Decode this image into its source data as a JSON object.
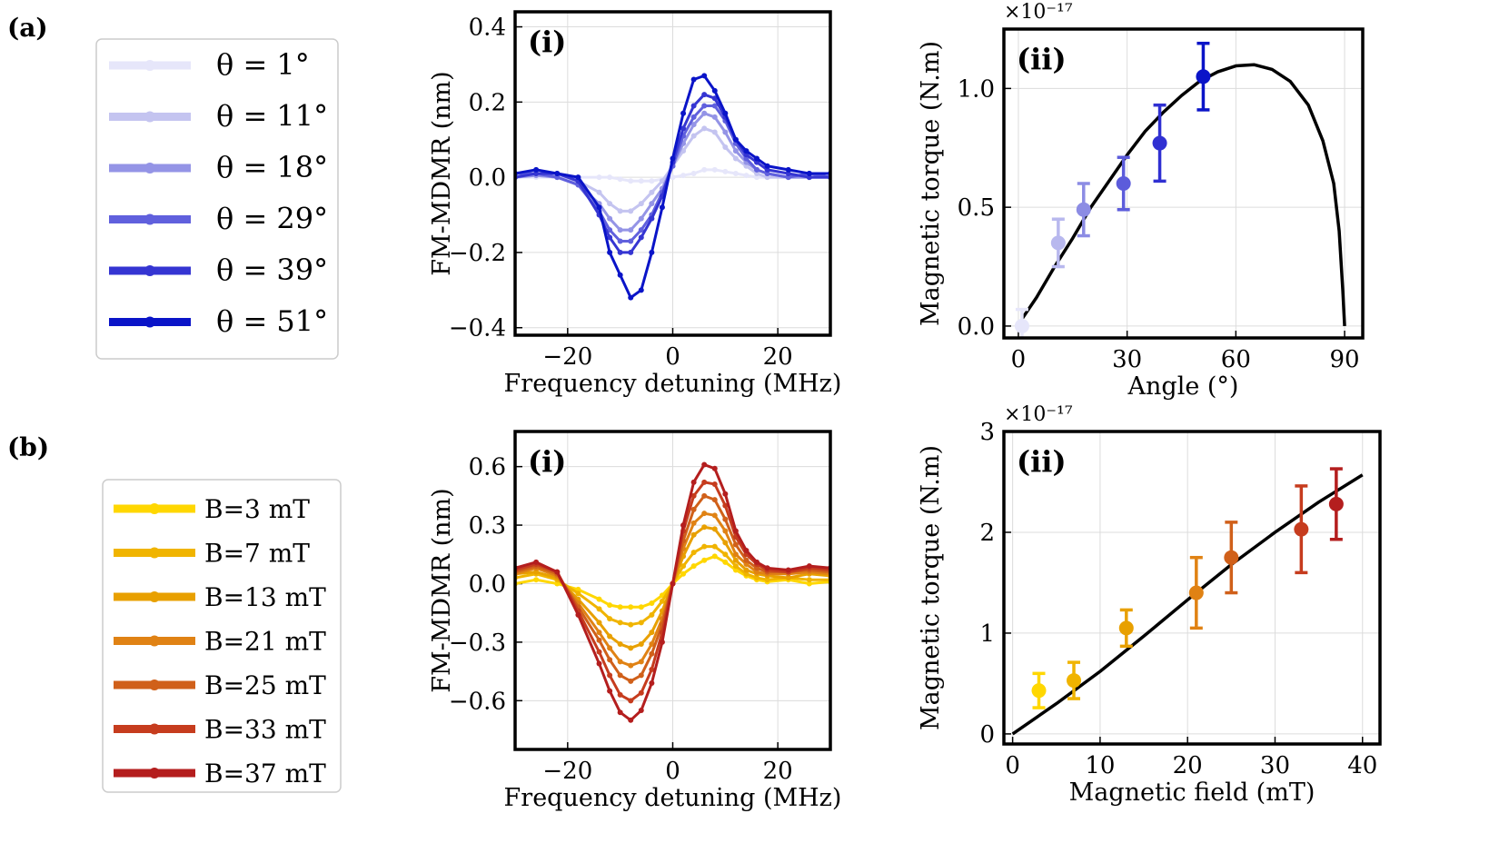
{
  "panel_labels": {
    "a": "(a)",
    "b": "(b)"
  },
  "chart_data": [
    {
      "id": "a_i",
      "type": "line",
      "tag": "(i)",
      "xlabel": "Frequency detuning (MHz)",
      "ylabel": "FM-MDMR (nm)",
      "xlim": [
        -30,
        30
      ],
      "ylim": [
        -0.42,
        0.44
      ],
      "xticks": [
        -20,
        0,
        20
      ],
      "xtick_labels": [
        "−20",
        "0",
        "20"
      ],
      "yticks": [
        -0.4,
        -0.2,
        0.0,
        0.2,
        0.4
      ],
      "ytick_labels": [
        "−0.4",
        "−0.2",
        "0.0",
        "0.2",
        "0.4"
      ],
      "grid": true,
      "x": [
        -30,
        -26,
        -22,
        -18,
        -14,
        -12,
        -10,
        -8,
        -6,
        -4,
        -2,
        0,
        2,
        4,
        6,
        8,
        10,
        12,
        14,
        16,
        18,
        22,
        26,
        30
      ],
      "series": [
        {
          "name": "θ = 1°",
          "color": "#e6e6fa",
          "values": [
            0.0,
            0.0,
            0.0,
            0.0,
            0.0,
            0.0,
            -0.005,
            -0.01,
            -0.01,
            -0.01,
            -0.005,
            0.0,
            0.005,
            0.01,
            0.02,
            0.02,
            0.015,
            0.01,
            0.005,
            0.0,
            0.0,
            0.0,
            0.0,
            0.0
          ]
        },
        {
          "name": "θ = 11°",
          "color": "#c4c4f0",
          "values": [
            0.0,
            0.005,
            0.0,
            -0.01,
            -0.04,
            -0.07,
            -0.09,
            -0.09,
            -0.07,
            -0.04,
            -0.01,
            0.03,
            0.07,
            0.11,
            0.13,
            0.12,
            0.08,
            0.05,
            0.03,
            0.01,
            0.0,
            0.0,
            0.0,
            0.0
          ]
        },
        {
          "name": "θ = 18°",
          "color": "#9494e6",
          "values": [
            0.0,
            0.005,
            0.0,
            -0.02,
            -0.07,
            -0.11,
            -0.14,
            -0.14,
            -0.11,
            -0.07,
            -0.03,
            0.03,
            0.09,
            0.14,
            0.17,
            0.16,
            0.12,
            0.07,
            0.04,
            0.02,
            0.01,
            0.0,
            0.0,
            0.0
          ]
        },
        {
          "name": "θ = 29°",
          "color": "#6060dd",
          "values": [
            0.01,
            0.01,
            0.0,
            -0.02,
            -0.09,
            -0.14,
            -0.17,
            -0.17,
            -0.14,
            -0.1,
            -0.04,
            0.03,
            0.11,
            0.16,
            0.19,
            0.19,
            0.15,
            0.09,
            0.05,
            0.02,
            0.01,
            0.0,
            0.01,
            0.0
          ]
        },
        {
          "name": "θ = 39°",
          "color": "#3535d2",
          "values": [
            0.0,
            0.01,
            0.01,
            -0.01,
            -0.1,
            -0.16,
            -0.2,
            -0.2,
            -0.16,
            -0.11,
            -0.05,
            0.04,
            0.13,
            0.19,
            0.22,
            0.21,
            0.16,
            0.1,
            0.06,
            0.04,
            0.02,
            0.01,
            0.0,
            0.0
          ]
        },
        {
          "name": "θ = 51°",
          "color": "#0a14c8",
          "values": [
            0.01,
            0.02,
            0.01,
            0.0,
            -0.08,
            -0.2,
            -0.26,
            -0.32,
            -0.3,
            -0.2,
            -0.08,
            0.05,
            0.17,
            0.26,
            0.27,
            0.23,
            0.17,
            0.1,
            0.07,
            0.05,
            0.03,
            0.02,
            0.01,
            0.01
          ]
        }
      ]
    },
    {
      "id": "a_ii",
      "type": "scatter",
      "tag": "(ii)",
      "multiplier": "×10⁻¹⁷",
      "xlabel": "Angle (°)",
      "ylabel": "Magnetic torque (N.m)",
      "xlim": [
        -4,
        95
      ],
      "ylim": [
        -0.05,
        1.25
      ],
      "xticks": [
        0,
        30,
        60,
        90
      ],
      "xtick_labels": [
        "0",
        "30",
        "60",
        "90"
      ],
      "yticks": [
        0.0,
        0.5,
        1.0
      ],
      "ytick_labels": [
        "0.0",
        "0.5",
        "1.0"
      ],
      "grid": true,
      "fit_curve": {
        "type": "line",
        "color": "#000000",
        "x_range": [
          1,
          90
        ],
        "model": "A*sin(2*theta-...)",
        "points": [
          [
            1,
            0.03
          ],
          [
            5,
            0.12
          ],
          [
            10,
            0.25
          ],
          [
            15,
            0.37
          ],
          [
            20,
            0.5
          ],
          [
            25,
            0.61
          ],
          [
            30,
            0.72
          ],
          [
            35,
            0.82
          ],
          [
            40,
            0.9
          ],
          [
            45,
            0.97
          ],
          [
            50,
            1.03
          ],
          [
            55,
            1.07
          ],
          [
            60,
            1.095
          ],
          [
            65,
            1.1
          ],
          [
            70,
            1.08
          ],
          [
            75,
            1.03
          ],
          [
            80,
            0.93
          ],
          [
            84,
            0.78
          ],
          [
            87,
            0.6
          ],
          [
            88.5,
            0.4
          ],
          [
            89.5,
            0.15
          ],
          [
            90,
            0.0
          ]
        ]
      },
      "points": [
        {
          "x": 1,
          "y": 0.0,
          "err": 0.07,
          "color": "#e6e6fa"
        },
        {
          "x": 11,
          "y": 0.35,
          "err": 0.1,
          "color": "#b8b8ee"
        },
        {
          "x": 18,
          "y": 0.49,
          "err": 0.11,
          "color": "#8c8ce4"
        },
        {
          "x": 29,
          "y": 0.6,
          "err": 0.11,
          "color": "#5c5cdb"
        },
        {
          "x": 39,
          "y": 0.77,
          "err": 0.16,
          "color": "#3030d2"
        },
        {
          "x": 51,
          "y": 1.05,
          "err": 0.14,
          "color": "#0a14c8"
        }
      ]
    },
    {
      "id": "b_i",
      "type": "line",
      "tag": "(i)",
      "xlabel": "Frequency detuning (MHz)",
      "ylabel": "FM-MDMR (nm)",
      "xlim": [
        -30,
        30
      ],
      "ylim": [
        -0.85,
        0.78
      ],
      "xticks": [
        -20,
        0,
        20
      ],
      "xtick_labels": [
        "−20",
        "0",
        "20"
      ],
      "yticks": [
        -0.6,
        -0.3,
        0.0,
        0.3,
        0.6
      ],
      "ytick_labels": [
        "−0.6",
        "−0.3",
        "0.0",
        "0.3",
        "0.6"
      ],
      "grid": true,
      "x": [
        -30,
        -26,
        -22,
        -18,
        -14,
        -12,
        -10,
        -8,
        -6,
        -4,
        -2,
        0,
        2,
        4,
        6,
        8,
        10,
        12,
        14,
        16,
        18,
        22,
        26,
        30
      ],
      "series": [
        {
          "name": "B=3 mT",
          "color": "#ffd700",
          "values": [
            0.0,
            0.02,
            0.0,
            -0.03,
            -0.08,
            -0.11,
            -0.12,
            -0.12,
            -0.12,
            -0.1,
            -0.06,
            0.0,
            0.05,
            0.09,
            0.12,
            0.14,
            0.11,
            0.07,
            0.04,
            0.02,
            0.01,
            0.02,
            0.0,
            0.01
          ]
        },
        {
          "name": "B=7 mT",
          "color": "#f0b400",
          "values": [
            0.03,
            0.05,
            0.02,
            -0.05,
            -0.13,
            -0.18,
            -0.2,
            -0.21,
            -0.2,
            -0.16,
            -0.09,
            0.0,
            0.09,
            0.16,
            0.19,
            0.19,
            0.15,
            0.09,
            0.05,
            0.03,
            0.02,
            0.03,
            0.02,
            0.02
          ]
        },
        {
          "name": "B=13 mT",
          "color": "#e8a000",
          "values": [
            0.05,
            0.06,
            0.03,
            -0.08,
            -0.2,
            -0.27,
            -0.31,
            -0.33,
            -0.31,
            -0.25,
            -0.14,
            0.0,
            0.14,
            0.25,
            0.29,
            0.28,
            0.21,
            0.12,
            0.07,
            0.05,
            0.04,
            0.03,
            0.05,
            0.04
          ]
        },
        {
          "name": "B=21 mT",
          "color": "#e08214",
          "values": [
            0.05,
            0.08,
            0.04,
            -0.1,
            -0.25,
            -0.33,
            -0.4,
            -0.42,
            -0.4,
            -0.31,
            -0.18,
            0.0,
            0.18,
            0.31,
            0.36,
            0.35,
            0.27,
            0.15,
            0.1,
            0.06,
            0.05,
            0.05,
            0.06,
            0.05
          ]
        },
        {
          "name": "B=25 mT",
          "color": "#d0601a",
          "values": [
            0.06,
            0.09,
            0.05,
            -0.12,
            -0.29,
            -0.39,
            -0.47,
            -0.5,
            -0.47,
            -0.36,
            -0.21,
            0.0,
            0.22,
            0.38,
            0.45,
            0.43,
            0.33,
            0.2,
            0.12,
            0.08,
            0.06,
            0.06,
            0.07,
            0.06
          ]
        },
        {
          "name": "B=33 mT",
          "color": "#c63c1e",
          "values": [
            0.07,
            0.1,
            0.06,
            -0.14,
            -0.35,
            -0.47,
            -0.57,
            -0.6,
            -0.56,
            -0.44,
            -0.25,
            0.0,
            0.27,
            0.45,
            0.52,
            0.51,
            0.4,
            0.24,
            0.15,
            0.1,
            0.07,
            0.06,
            0.08,
            0.07
          ]
        },
        {
          "name": "B=37 mT",
          "color": "#b41e1e",
          "values": [
            0.08,
            0.11,
            0.06,
            -0.16,
            -0.41,
            -0.55,
            -0.66,
            -0.7,
            -0.65,
            -0.51,
            -0.3,
            0.0,
            0.3,
            0.52,
            0.61,
            0.59,
            0.46,
            0.27,
            0.17,
            0.11,
            0.08,
            0.07,
            0.09,
            0.08
          ]
        }
      ]
    },
    {
      "id": "b_ii",
      "type": "scatter",
      "tag": "(ii)",
      "multiplier": "×10⁻¹⁷",
      "xlabel": "Magnetic field (mT)",
      "ylabel": "Magnetic torque (N.m)",
      "xlim": [
        -1,
        42
      ],
      "ylim": [
        -0.1,
        3.0
      ],
      "xticks": [
        0,
        10,
        20,
        30,
        40
      ],
      "xtick_labels": [
        "0",
        "10",
        "20",
        "30",
        "40"
      ],
      "yticks": [
        0,
        1,
        2,
        3
      ],
      "ytick_labels": [
        "0",
        "1",
        "2",
        "3"
      ],
      "grid": true,
      "fit_curve": {
        "type": "line",
        "color": "#000000",
        "x_range": [
          0,
          40
        ],
        "points": [
          [
            0,
            0.0
          ],
          [
            5,
            0.3
          ],
          [
            10,
            0.62
          ],
          [
            15,
            0.97
          ],
          [
            20,
            1.33
          ],
          [
            25,
            1.68
          ],
          [
            30,
            2.0
          ],
          [
            35,
            2.3
          ],
          [
            40,
            2.57
          ]
        ]
      },
      "points": [
        {
          "x": 3,
          "y": 0.43,
          "err": 0.17,
          "color": "#ffd700"
        },
        {
          "x": 7,
          "y": 0.53,
          "err": 0.18,
          "color": "#f0b400"
        },
        {
          "x": 13,
          "y": 1.05,
          "err": 0.18,
          "color": "#e8a000"
        },
        {
          "x": 21,
          "y": 1.4,
          "err": 0.35,
          "color": "#e08214"
        },
        {
          "x": 25,
          "y": 1.75,
          "err": 0.35,
          "color": "#d0601a"
        },
        {
          "x": 33,
          "y": 2.03,
          "err": 0.43,
          "color": "#c63c1e"
        },
        {
          "x": 37,
          "y": 2.28,
          "err": 0.35,
          "color": "#b41e1e"
        }
      ]
    }
  ]
}
